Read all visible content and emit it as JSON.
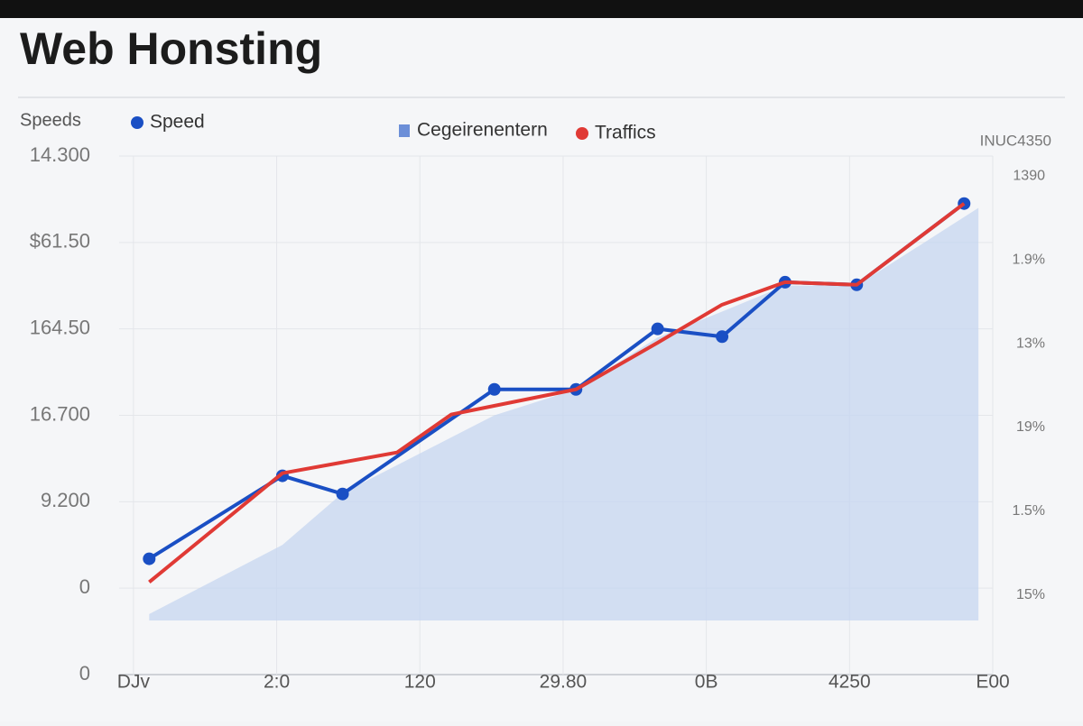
{
  "chart_data": {
    "type": "line",
    "title": "Web Honsting",
    "y_label": "Speeds",
    "y2_label": "INUC4350",
    "xlim": [
      -0.1,
      6
    ],
    "xticks": [
      {
        "value": 0,
        "label": "DJv"
      },
      {
        "value": 1,
        "label": "2:0"
      },
      {
        "value": 2,
        "label": "120"
      },
      {
        "value": 3,
        "label": "29.80"
      },
      {
        "value": 4,
        "label": "0B"
      },
      {
        "value": 5,
        "label": "4250"
      },
      {
        "value": 6,
        "label": "E00"
      }
    ],
    "ylim": [
      0,
      6
    ],
    "yticks": [
      {
        "value": 0,
        "label": "0"
      },
      {
        "value": 1,
        "label": "0"
      },
      {
        "value": 2,
        "label": "9.200"
      },
      {
        "value": 3,
        "label": "16.700"
      },
      {
        "value": 4,
        "label": "164.50"
      },
      {
        "value": 5,
        "label": "$61.50"
      },
      {
        "value": 6,
        "label": "14.300"
      }
    ],
    "y2lim": [
      -0.95,
      5.24
    ],
    "y2ticks": [
      {
        "value": 0,
        "label": "15%"
      },
      {
        "value": 1,
        "label": "1.5%"
      },
      {
        "value": 2,
        "label": "19%"
      },
      {
        "value": 3,
        "label": "13%"
      },
      {
        "value": 4,
        "label": "1.9%"
      },
      {
        "value": 5,
        "label": "1390"
      }
    ],
    "grid": true,
    "series": [
      {
        "name": "Cegeirenentern",
        "color": "#c5d5f0",
        "area": true,
        "x": [
          0.11,
          1.04,
          1.46,
          2.52,
          3.09,
          3.66,
          4.11,
          4.55,
          5.05,
          5.9
        ],
        "values": [
          0.7,
          1.5,
          2.1,
          3.0,
          3.3,
          3.9,
          4.2,
          4.5,
          4.5,
          5.4
        ]
      },
      {
        "name": "Speed",
        "color": "#1a4fc4",
        "markers": true,
        "x": [
          0.11,
          1.04,
          1.46,
          2.52,
          3.09,
          3.66,
          4.11,
          4.55,
          5.05,
          5.8
        ],
        "values": [
          1.34,
          2.3,
          2.09,
          3.3,
          3.3,
          4.0,
          3.91,
          4.54,
          4.51,
          5.45
        ]
      },
      {
        "name": "Traffics",
        "color": "#e03a35",
        "x": [
          0.11,
          1.04,
          1.84,
          2.22,
          3.09,
          3.66,
          4.11,
          4.55,
          5.05,
          5.8
        ],
        "values": [
          1.07,
          2.33,
          2.57,
          3.01,
          3.3,
          3.84,
          4.28,
          4.54,
          4.51,
          5.45
        ]
      }
    ]
  }
}
